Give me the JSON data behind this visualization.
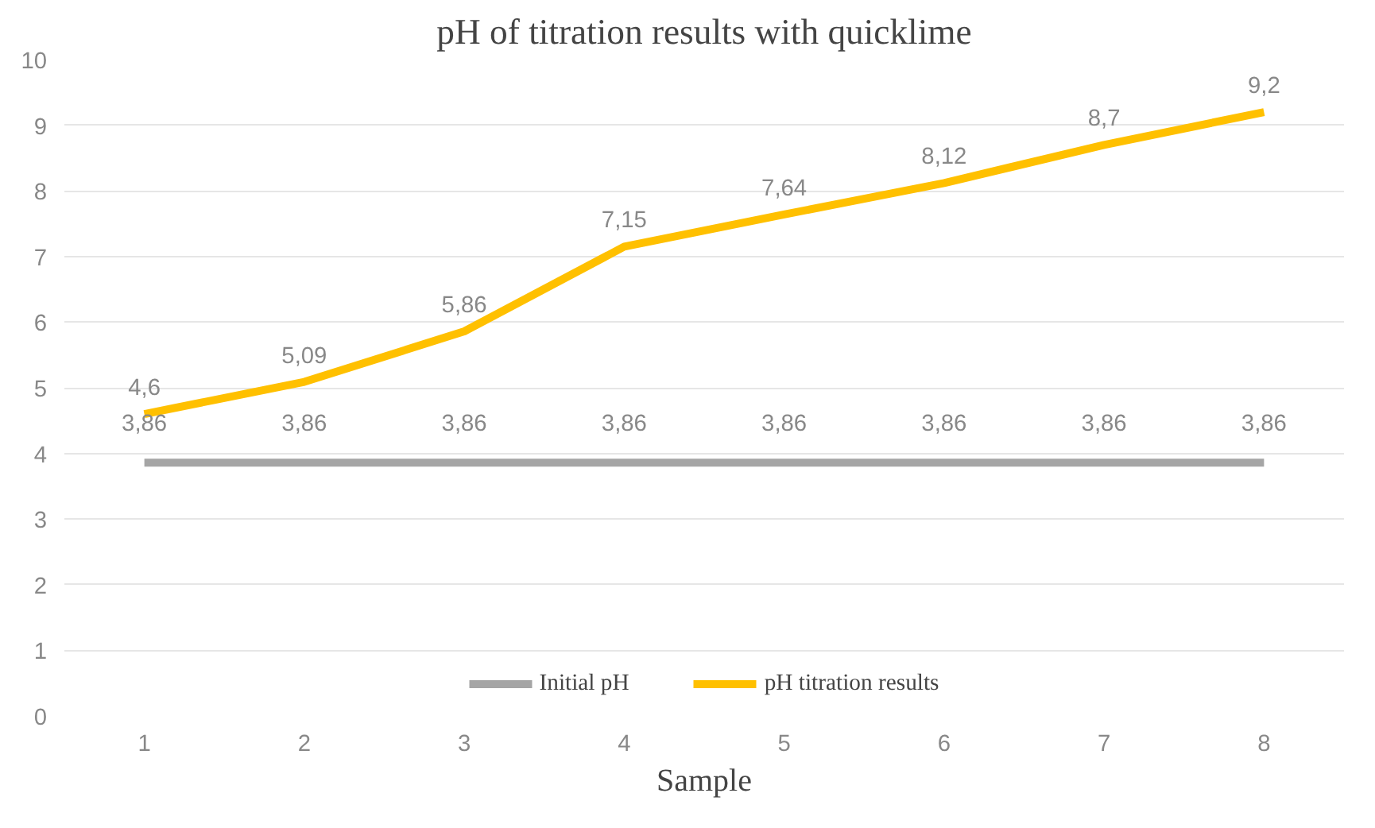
{
  "chart_data": {
    "type": "line",
    "title": "pH of titration results with quicklime",
    "xlabel": "Sample",
    "categories": [
      "1",
      "2",
      "3",
      "4",
      "5",
      "6",
      "7",
      "8"
    ],
    "series": [
      {
        "name": "Initial pH",
        "color": "#a5a5a5",
        "values": [
          3.86,
          3.86,
          3.86,
          3.86,
          3.86,
          3.86,
          3.86,
          3.86
        ],
        "value_labels": [
          "3,86",
          "3,86",
          "3,86",
          "3,86",
          "3,86",
          "3,86",
          "3,86",
          "3,86"
        ]
      },
      {
        "name": "pH titration results",
        "color": "#ffc000",
        "values": [
          4.6,
          5.09,
          5.86,
          7.15,
          7.64,
          8.12,
          8.7,
          9.2
        ],
        "value_labels": [
          "4,6",
          "5,09",
          "5,86",
          "7,15",
          "7,64",
          "8,12",
          "8,7",
          "9,2"
        ]
      }
    ],
    "ylim": [
      0,
      10
    ],
    "yticks": [
      0,
      1,
      2,
      3,
      4,
      5,
      6,
      7,
      8,
      9,
      10
    ],
    "grid": "y",
    "legend": "bottom",
    "marker": "none",
    "line_style": "solid"
  }
}
